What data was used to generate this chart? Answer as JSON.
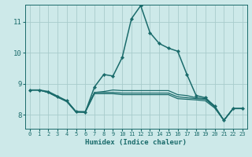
{
  "xlabel": "Humidex (Indice chaleur)",
  "bg_color": "#cde9e9",
  "grid_color": "#a8cccc",
  "line_color": "#1a6b6b",
  "xlim": [
    -0.5,
    23.5
  ],
  "ylim": [
    7.55,
    11.55
  ],
  "xticks": [
    0,
    1,
    2,
    3,
    4,
    5,
    6,
    7,
    8,
    9,
    10,
    11,
    12,
    13,
    14,
    15,
    16,
    17,
    18,
    19,
    20,
    21,
    22,
    23
  ],
  "yticks": [
    8,
    9,
    10,
    11
  ],
  "lines": [
    {
      "y": [
        8.8,
        8.8,
        8.75,
        8.6,
        8.45,
        8.1,
        8.08,
        8.9,
        9.3,
        9.25,
        9.85,
        11.1,
        11.52,
        10.65,
        10.3,
        10.15,
        10.05,
        9.3,
        8.62,
        8.55,
        8.28,
        7.82,
        8.2,
        8.2
      ],
      "marker": true,
      "lw": 1.1
    },
    {
      "y": [
        8.8,
        8.8,
        8.72,
        8.57,
        8.45,
        8.1,
        8.1,
        8.72,
        8.75,
        8.8,
        8.78,
        8.78,
        8.78,
        8.78,
        8.78,
        8.78,
        8.65,
        8.62,
        8.55,
        8.52,
        8.28,
        7.82,
        8.2,
        8.2
      ],
      "marker": false,
      "lw": 0.9
    },
    {
      "y": [
        8.8,
        8.8,
        8.72,
        8.57,
        8.45,
        8.1,
        8.1,
        8.72,
        8.72,
        8.72,
        8.7,
        8.7,
        8.7,
        8.7,
        8.7,
        8.7,
        8.58,
        8.55,
        8.52,
        8.5,
        8.25,
        7.82,
        8.2,
        8.2
      ],
      "marker": false,
      "lw": 0.9
    },
    {
      "y": [
        8.8,
        8.8,
        8.72,
        8.57,
        8.42,
        8.08,
        8.08,
        8.68,
        8.68,
        8.68,
        8.65,
        8.65,
        8.65,
        8.65,
        8.65,
        8.65,
        8.52,
        8.5,
        8.48,
        8.45,
        8.22,
        7.82,
        8.2,
        8.2
      ],
      "marker": false,
      "lw": 0.9
    }
  ]
}
